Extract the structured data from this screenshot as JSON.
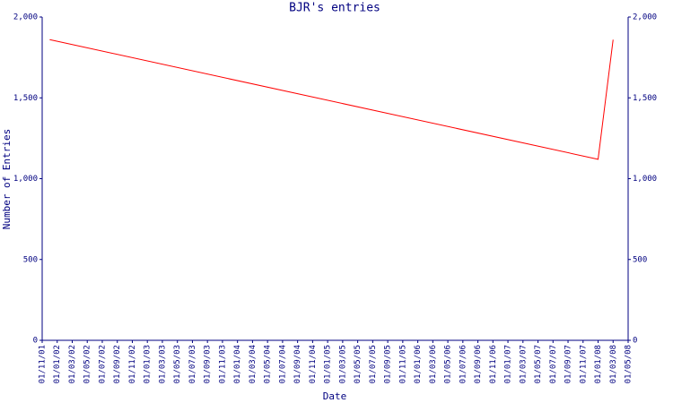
{
  "chart_data": {
    "type": "line",
    "title": "BJR's entries",
    "x_label": "Date",
    "y_label": "Number of Entries",
    "x": [
      "01/12/01",
      "01/01/08",
      "01/03/08"
    ],
    "values": [
      1860,
      1120,
      1860
    ],
    "color": "#ff0000",
    "xlim": [
      "01/11/01",
      "01/05/08"
    ],
    "xticks": [
      "01/11/01",
      "01/01/02",
      "01/03/02",
      "01/05/02",
      "01/07/02",
      "01/09/02",
      "01/11/02",
      "01/01/03",
      "01/03/03",
      "01/05/03",
      "01/07/03",
      "01/09/03",
      "01/11/03",
      "01/01/04",
      "01/03/04",
      "01/05/04",
      "01/07/04",
      "01/09/04",
      "01/11/04",
      "01/01/05",
      "01/03/05",
      "01/05/05",
      "01/07/05",
      "01/09/05",
      "01/11/05",
      "01/01/06",
      "01/03/06",
      "01/05/06",
      "01/07/06",
      "01/09/06",
      "01/11/06",
      "01/01/07",
      "01/03/07",
      "01/05/07",
      "01/07/07",
      "01/09/07",
      "01/11/07",
      "01/01/08",
      "01/03/08",
      "01/05/08"
    ],
    "ylim": [
      0,
      2000
    ],
    "yticks": [
      0,
      500,
      {
        "value": 1000,
        "label": "1,000"
      },
      {
        "value": 1500,
        "label": "1,500"
      },
      {
        "value": 2000,
        "label": "2,000"
      }
    ],
    "right_axis": true
  }
}
